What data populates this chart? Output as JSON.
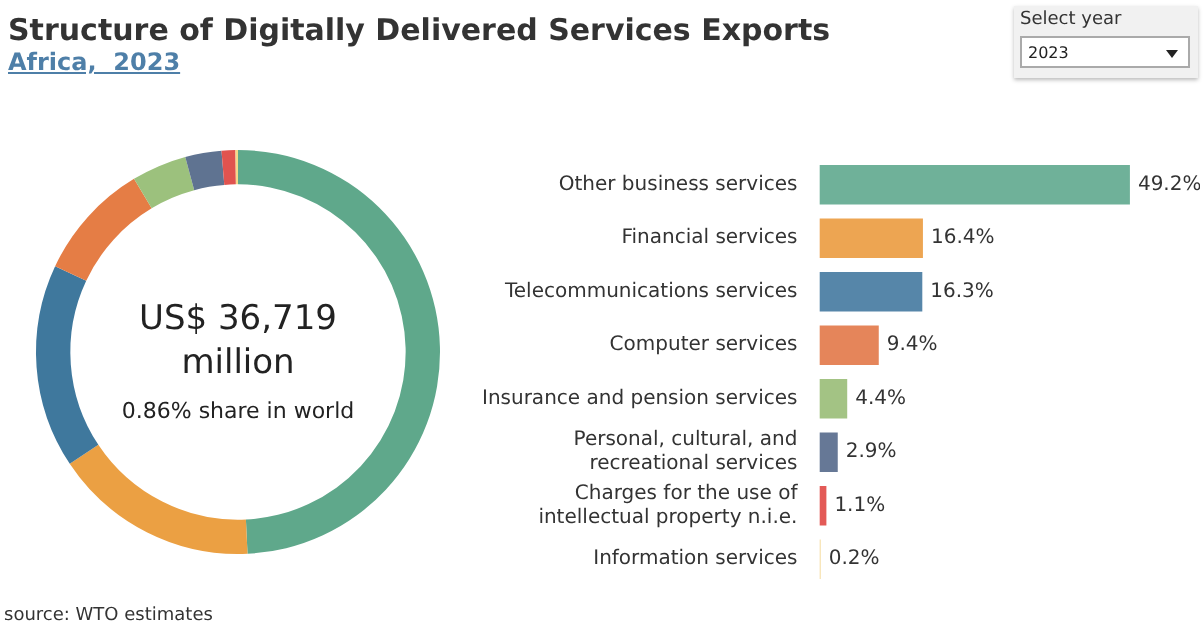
{
  "chart_data": [
    {
      "type": "donut",
      "title": "Structure of Digitally Delivered Services Exports",
      "subtitle": "Africa,  2023",
      "categories": [
        null,
        null,
        null,
        null,
        null,
        null,
        null,
        null
      ],
      "values": [
        49.2,
        16.4,
        16.3,
        9.4,
        4.4,
        2.9,
        1.1,
        0.2
      ],
      "colors": [
        "#5fa88b",
        "#eba043",
        "#3f789d",
        "#e57d45",
        "#9cc17d",
        "#5f7391",
        "#e0534f",
        "#f5d98a"
      ],
      "annotations": [
        "US$ 36,719 million",
        "0.86% share in world",
        "Select year",
        "2023",
        "source: WTO estimates"
      ]
    },
    {
      "type": "bar",
      "orientation": "horizontal",
      "categories": [
        "Other business services",
        "Financial services",
        "Telecommunications services",
        "Computer services",
        "Insurance and pension services",
        "Personal, cultural, and recreational services",
        "Charges for the use of intellectual property n.i.e.",
        "Information services"
      ],
      "values": [
        49.2,
        16.4,
        16.3,
        9.4,
        4.4,
        2.9,
        1.1,
        0.2
      ],
      "colors": [
        "#6fb199",
        "#eda552",
        "#5686a9",
        "#e5855a",
        "#a3c384",
        "#667896",
        "#e35a57",
        "#f5dca0"
      ],
      "value_labels": [
        "49.2%",
        "16.4%",
        "16.3%",
        "9.4%",
        "4.4%",
        "2.9%",
        "1.1%",
        "0.2%"
      ]
    }
  ]
}
